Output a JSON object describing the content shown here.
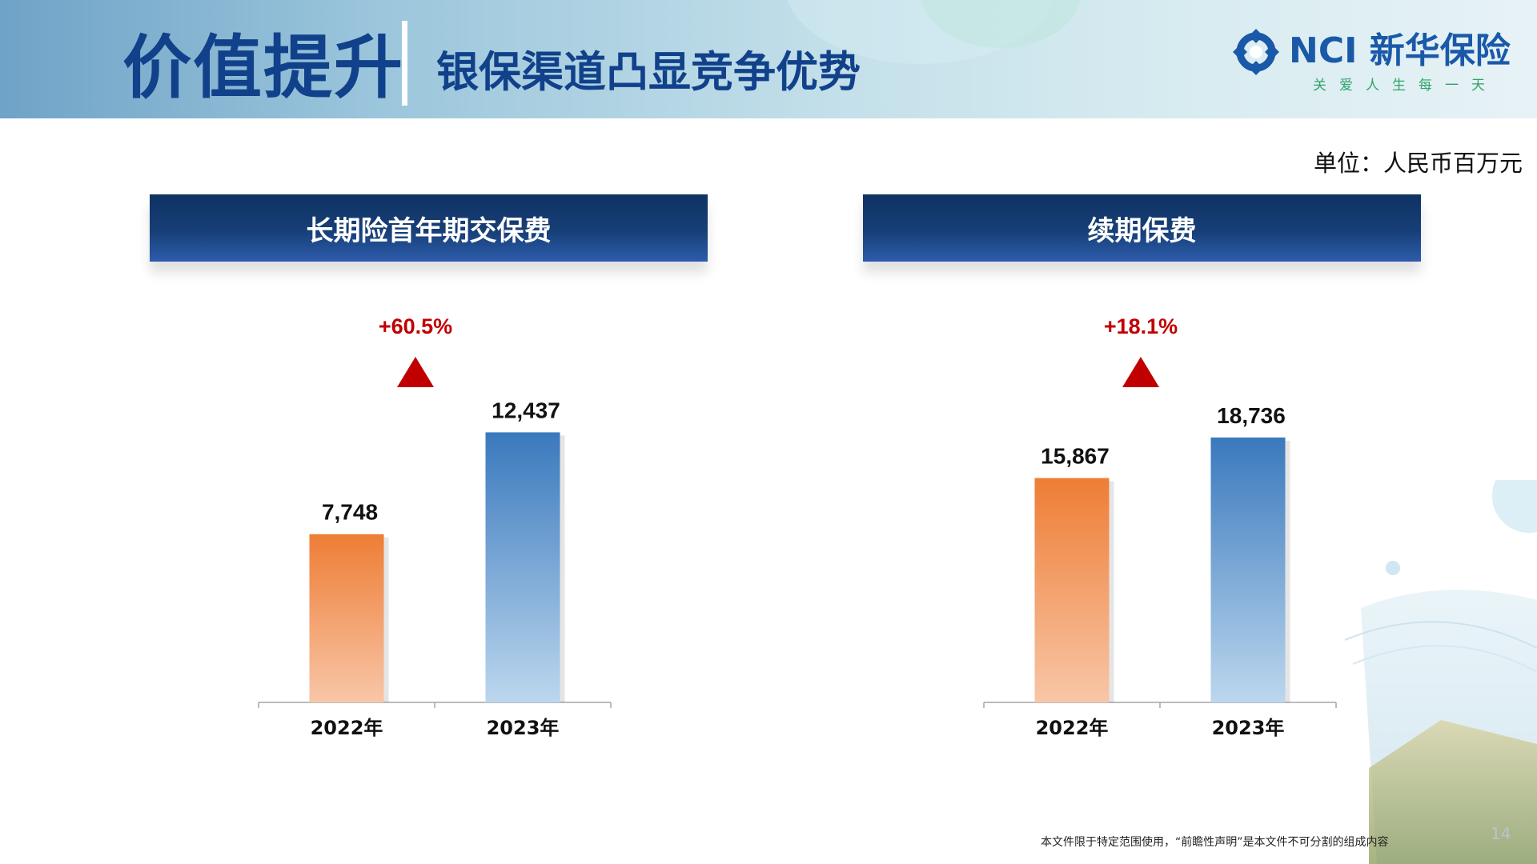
{
  "header": {
    "title": "价值提升",
    "subtitle": "银保渠道凸显竞争优势"
  },
  "logo": {
    "name": "NCI 新华保险",
    "slogan": "关爱人生每一天"
  },
  "unit_label": "单位：人民币百万元",
  "colors": {
    "header_text": "#11418a",
    "bar_2022_top": "#ee7d35",
    "bar_2022_bottom": "#f8c6a8",
    "bar_2023_top": "#3a79bd",
    "bar_2023_bottom": "#bcd7ee",
    "growth_red": "#c00000",
    "banner_dark": "#0f3263"
  },
  "chart_data": [
    {
      "type": "bar",
      "title": "长期险首年期交保费",
      "categories": [
        "2022年",
        "2023年"
      ],
      "values": [
        7748,
        12437
      ],
      "data_labels": [
        "7,748",
        "12,437"
      ],
      "growth_label": "+60.5%",
      "ylim": [
        0,
        14000
      ],
      "grid": false
    },
    {
      "type": "bar",
      "title": "续期保费",
      "categories": [
        "2022年",
        "2023年"
      ],
      "values": [
        15867,
        18736
      ],
      "data_labels": [
        "15,867",
        "18,736"
      ],
      "growth_label": "+18.1%",
      "ylim": [
        0,
        21500
      ],
      "grid": false
    }
  ],
  "footer": {
    "disclaimer": "本文件限于特定范围使用，“前瞻性声明”是本文件不可分割的组成内容",
    "page_number": "14"
  }
}
